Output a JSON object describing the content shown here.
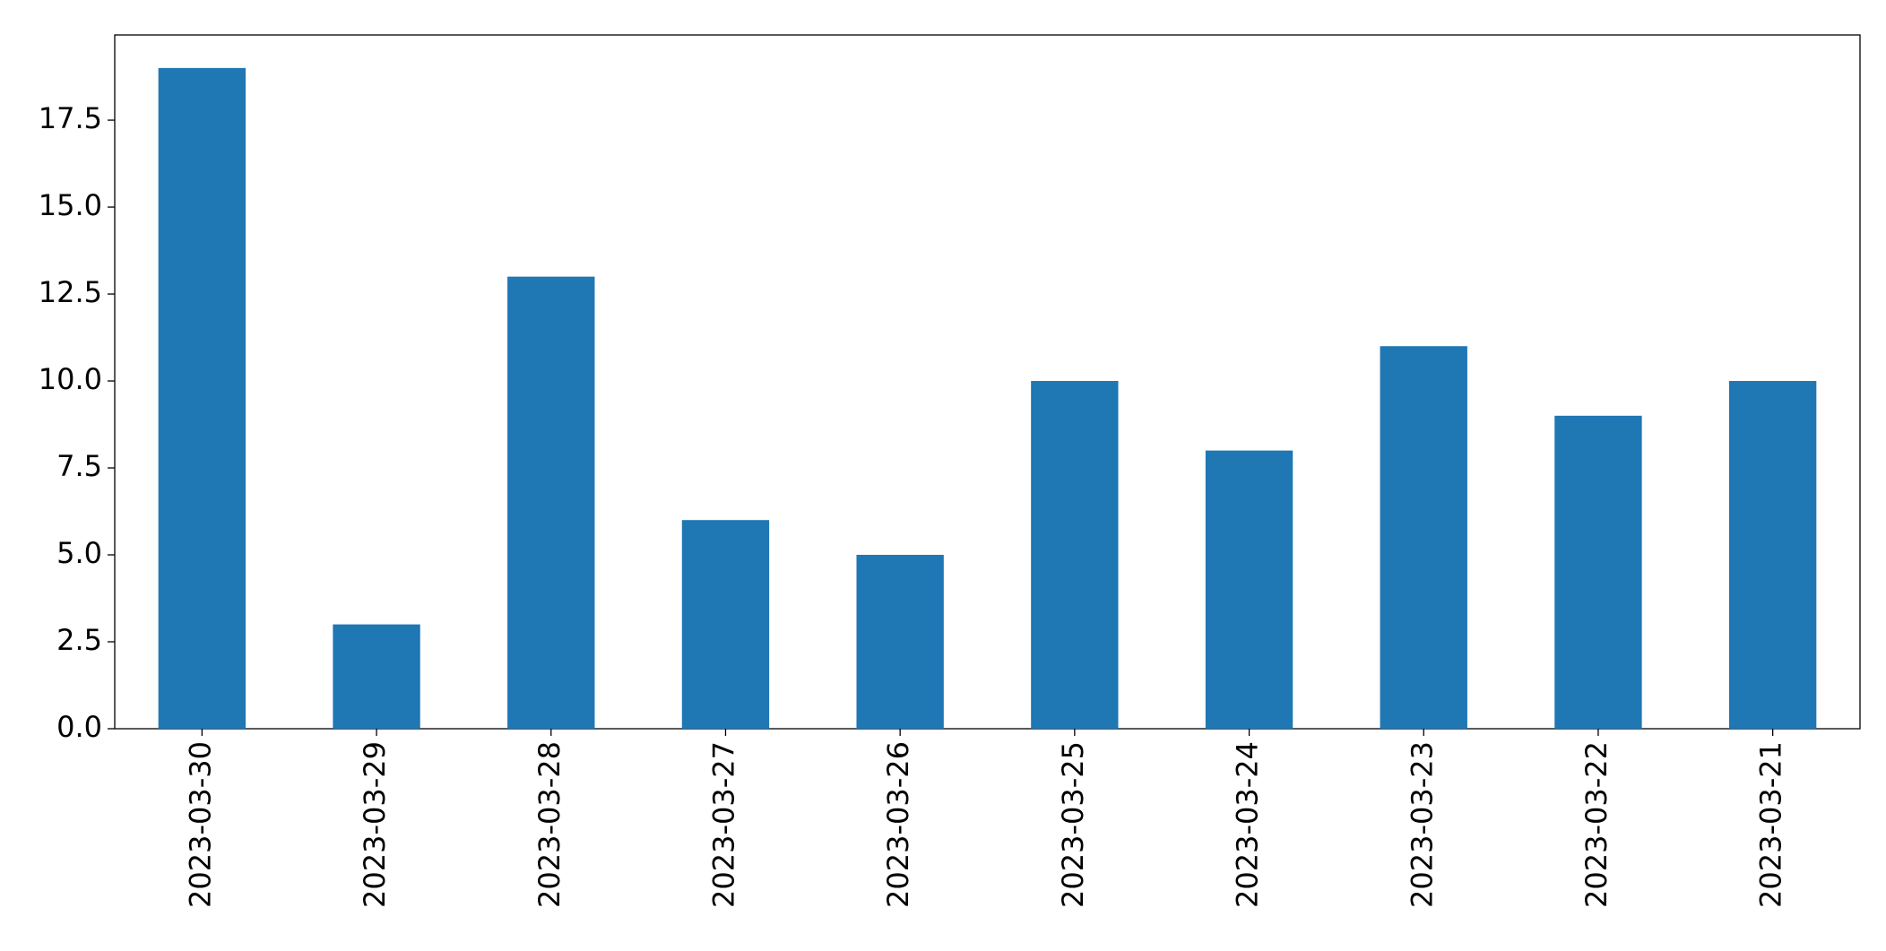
{
  "chart_data": {
    "type": "bar",
    "categories": [
      "2023-03-30",
      "2023-03-29",
      "2023-03-28",
      "2023-03-27",
      "2023-03-26",
      "2023-03-25",
      "2023-03-24",
      "2023-03-23",
      "2023-03-22",
      "2023-03-21"
    ],
    "values": [
      19,
      3,
      13,
      6,
      5,
      10,
      8,
      11,
      9,
      10
    ],
    "color": "#1f77b4",
    "ylim": [
      0,
      19.95
    ],
    "yticks": [
      {
        "value": 0,
        "label": "0.0"
      },
      2.5,
      {
        "value": 5,
        "label": "5.0"
      },
      7.5,
      {
        "value": 10,
        "label": "10.0"
      },
      12.5,
      {
        "value": 15,
        "label": "15.0"
      },
      17.5
    ],
    "grid": false
  }
}
